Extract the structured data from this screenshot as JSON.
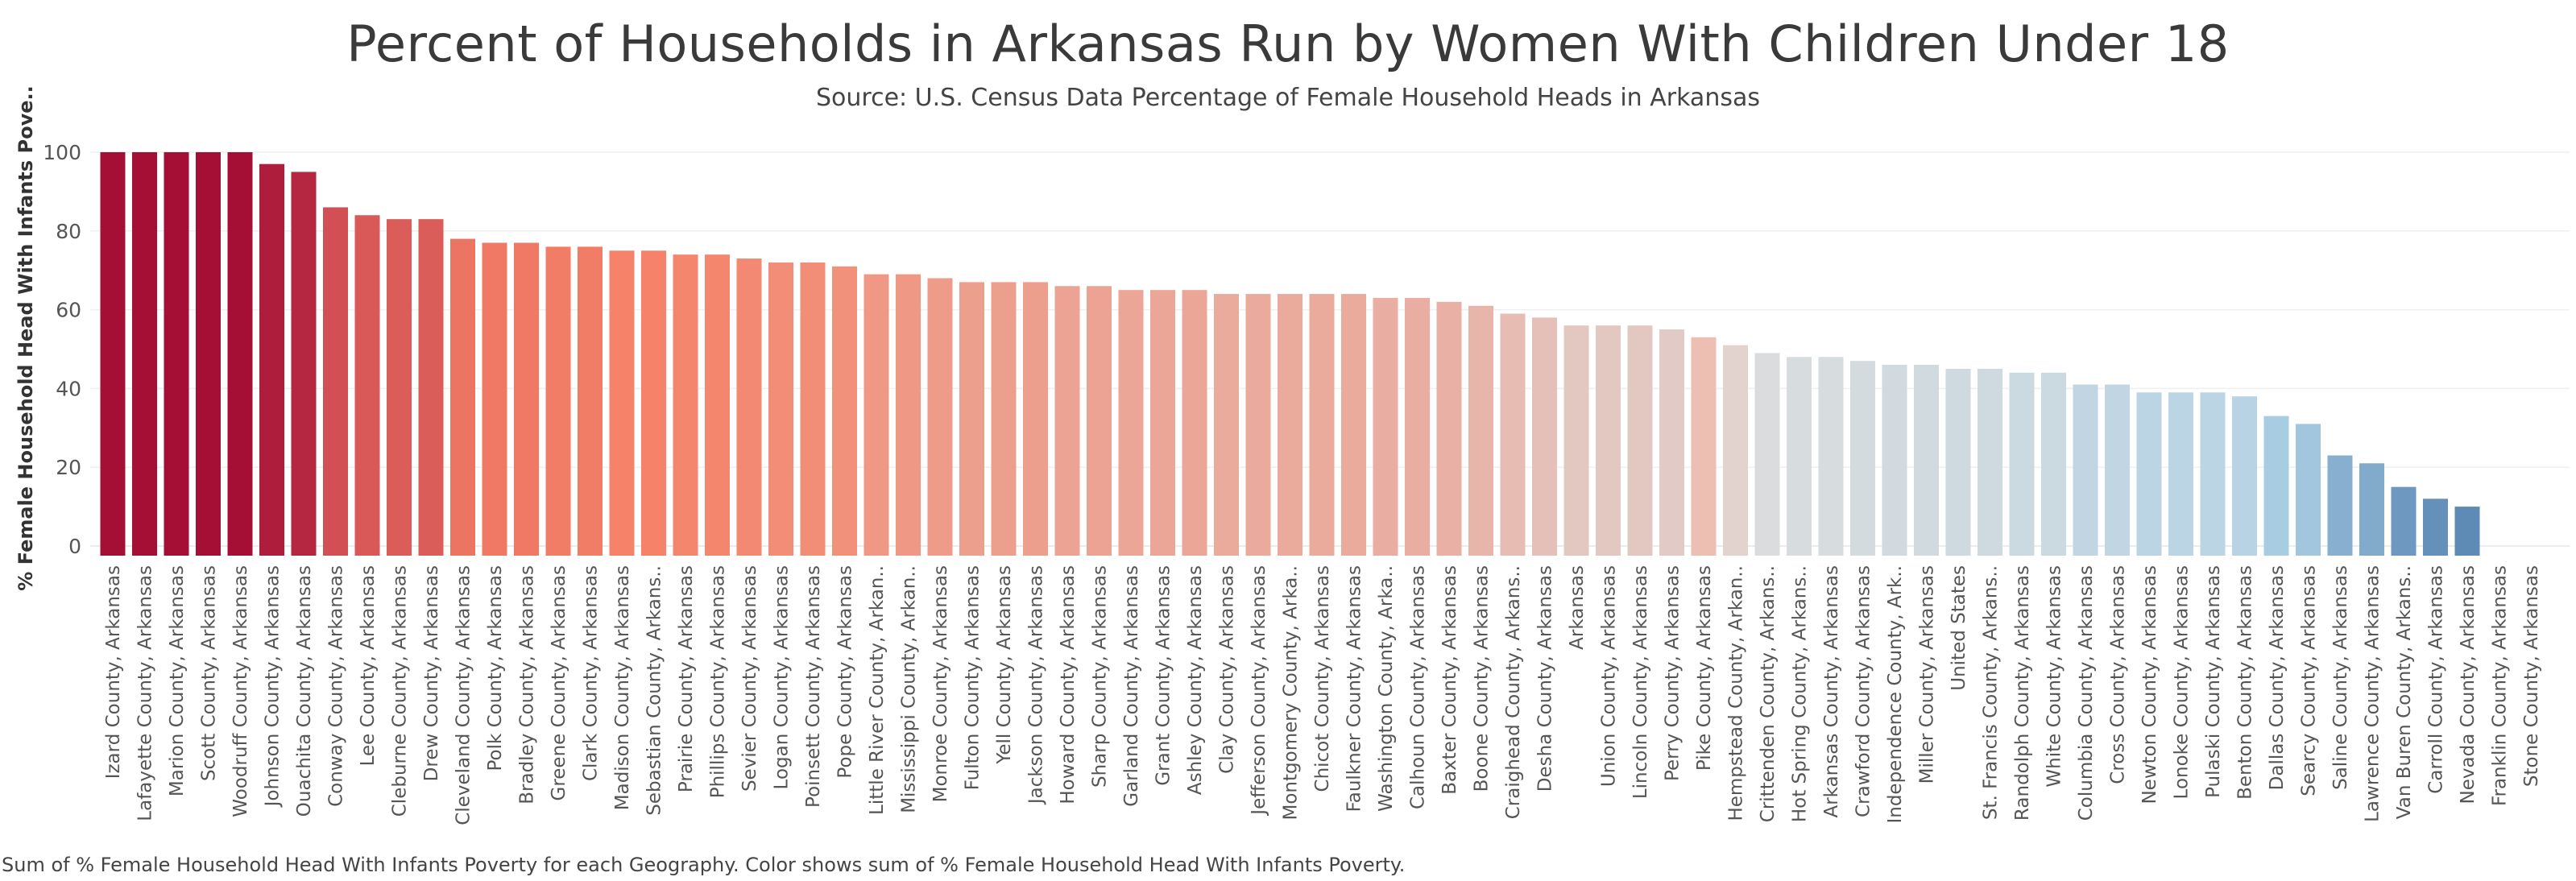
{
  "chart_data": {
    "type": "bar",
    "title": "Percent of Households in Arkansas Run by Women With Children Under 18",
    "subtitle": "Source: U.S. Census Data Percentage of Female Household Heads in Arkansas",
    "ylabel": "% Female Household Head With Infants Pove..",
    "xlabel": "",
    "ylim": [
      0,
      100
    ],
    "yticks": [
      0,
      20,
      40,
      60,
      80,
      100
    ],
    "grid": true,
    "footnote": "Sum of % Female Household Head With Infants Poverty for each Geography.  Color shows sum of % Female Household Head With Infants Poverty.",
    "color_scale": {
      "low": "#3d6da3",
      "mid": "#dddddd",
      "high": "#a50f36"
    },
    "categories": [
      "Izard County, Arkansas",
      "Lafayette County, Arkansas",
      "Marion County, Arkansas",
      "Scott County, Arkansas",
      "Woodruff County, Arkansas",
      "Johnson County, Arkansas",
      "Ouachita County, Arkansas",
      "Conway County, Arkansas",
      "Lee County, Arkansas",
      "Cleburne County, Arkansas",
      "Drew County, Arkansas",
      "Cleveland County, Arkansas",
      "Polk County, Arkansas",
      "Bradley County, Arkansas",
      "Greene County, Arkansas",
      "Clark County, Arkansas",
      "Madison County, Arkansas",
      "Sebastian County, Arkans..",
      "Prairie County, Arkansas",
      "Phillips County, Arkansas",
      "Sevier County, Arkansas",
      "Logan County, Arkansas",
      "Poinsett County, Arkansas",
      "Pope County, Arkansas",
      "Little River County, Arkan..",
      "Mississippi County, Arkan..",
      "Monroe County, Arkansas",
      "Fulton County, Arkansas",
      "Yell County, Arkansas",
      "Jackson County, Arkansas",
      "Howard County, Arkansas",
      "Sharp County, Arkansas",
      "Garland County, Arkansas",
      "Grant County, Arkansas",
      "Ashley County, Arkansas",
      "Clay County, Arkansas",
      "Jefferson County, Arkansas",
      "Montgomery County, Arka..",
      "Chicot County, Arkansas",
      "Faulkner County, Arkansas",
      "Washington County, Arka..",
      "Calhoun County, Arkansas",
      "Baxter County, Arkansas",
      "Boone County, Arkansas",
      "Craighead County, Arkans..",
      "Desha County, Arkansas",
      "Arkansas",
      "Union County, Arkansas",
      "Lincoln County, Arkansas",
      "Perry County, Arkansas",
      "Pike County, Arkansas",
      "Hempstead County, Arkan..",
      "Crittenden County, Arkans..",
      "Hot Spring County, Arkans..",
      "Arkansas County, Arkansas",
      "Crawford County, Arkansas",
      "Independence County, Ark..",
      "Miller County, Arkansas",
      "United States",
      "St. Francis County, Arkans..",
      "Randolph County, Arkansas",
      "White County, Arkansas",
      "Columbia County, Arkansas",
      "Cross County, Arkansas",
      "Newton County, Arkansas",
      "Lonoke County, Arkansas",
      "Pulaski County, Arkansas",
      "Benton County, Arkansas",
      "Dallas County, Arkansas",
      "Searcy County, Arkansas",
      "Saline County, Arkansas",
      "Lawrence County, Arkansas",
      "Van Buren County, Arkans..",
      "Carroll County, Arkansas",
      "Nevada County, Arkansas",
      "Franklin County, Arkansas",
      "Stone County, Arkansas"
    ],
    "values": [
      100,
      100,
      100,
      100,
      100,
      97,
      95,
      86,
      84,
      83,
      83,
      78,
      77,
      77,
      76,
      76,
      75,
      75,
      74,
      74,
      73,
      72,
      72,
      71,
      69,
      69,
      68,
      67,
      67,
      67,
      66,
      66,
      65,
      65,
      65,
      64,
      64,
      64,
      64,
      64,
      63,
      63,
      62,
      61,
      59,
      58,
      56,
      56,
      56,
      55,
      53,
      51,
      49,
      48,
      48,
      47,
      46,
      46,
      45,
      45,
      44,
      44,
      41,
      41,
      39,
      39,
      39,
      38,
      33,
      31,
      23,
      21,
      15,
      12,
      10,
      0,
      0
    ]
  }
}
